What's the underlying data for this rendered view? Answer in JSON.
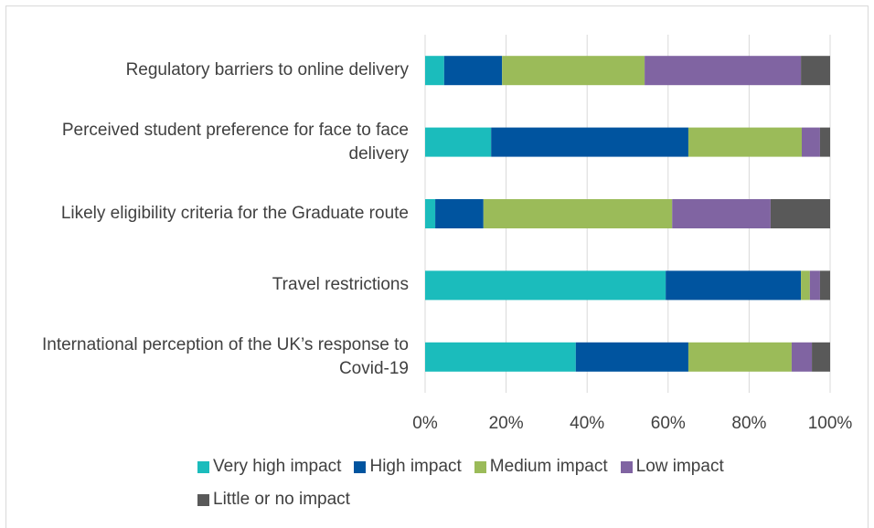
{
  "chart_data": {
    "type": "stacked_barh",
    "categories": [
      "Regulatory barriers to online delivery",
      "Perceived student preference for face to face delivery",
      "Likely eligibility criteria for the Graduate route",
      "Travel restrictions",
      "International perception of the UK’s response to Covid-19"
    ],
    "series": [
      {
        "name": "Very high impact",
        "color": "#1bbcbc",
        "values": [
          4.7,
          16.3,
          2.5,
          59.4,
          37.2
        ]
      },
      {
        "name": "High impact",
        "color": "#00549f",
        "values": [
          14.3,
          48.7,
          11.9,
          33.4,
          27.8
        ]
      },
      {
        "name": "Medium impact",
        "color": "#9bbb59",
        "values": [
          35.2,
          28,
          46.6,
          2.2,
          25.5
        ]
      },
      {
        "name": "Low impact",
        "color": "#8064a2",
        "values": [
          38.6,
          4.5,
          24.3,
          2.5,
          5
        ]
      },
      {
        "name": "Little or no impact",
        "color": "#595959",
        "values": [
          7.2,
          2.5,
          14.7,
          2.5,
          4.5
        ]
      }
    ],
    "xlim": [
      0,
      100
    ],
    "xticks": [
      {
        "value": 0,
        "label": "0%"
      },
      {
        "value": 20,
        "label": "20%"
      },
      {
        "value": 40,
        "label": "40%"
      },
      {
        "value": 60,
        "label": "60%"
      },
      {
        "value": 80,
        "label": "80%"
      },
      {
        "value": 100,
        "label": "100%"
      }
    ],
    "grid": true,
    "legend": "bottom"
  }
}
